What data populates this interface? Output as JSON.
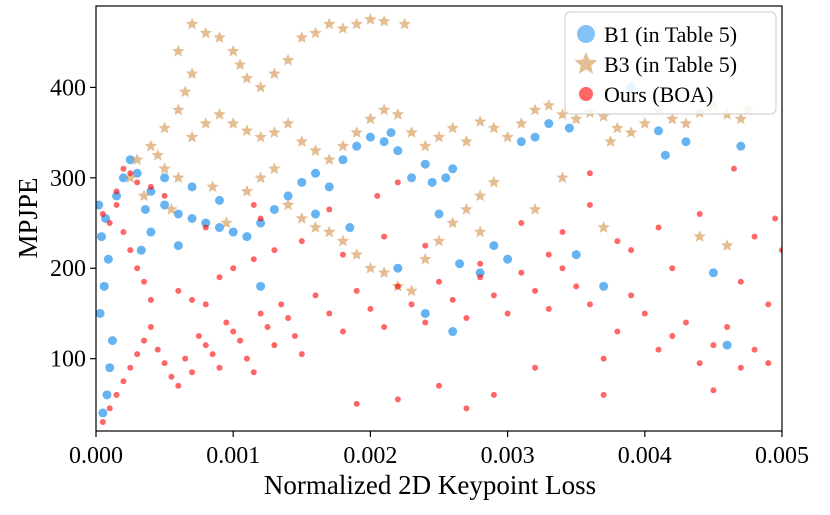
{
  "chart_data": {
    "type": "scatter",
    "title": "",
    "xlabel": "Normalized 2D Keypoint Loss",
    "ylabel": "MPJPE",
    "xlim": [
      0.0,
      0.005
    ],
    "ylim": [
      20,
      490
    ],
    "xticks": [
      0.0,
      0.001,
      0.002,
      0.003,
      0.004,
      0.005
    ],
    "xtick_labels": [
      "0.000",
      "0.001",
      "0.002",
      "0.003",
      "0.004",
      "0.005"
    ],
    "yticks": [
      100,
      200,
      300,
      400
    ],
    "ytick_labels": [
      "100",
      "200",
      "300",
      "400"
    ],
    "grid": false,
    "legend_position": "top-right",
    "series": [
      {
        "name": "B1 (in Table 5)",
        "marker": "circle",
        "color": "#3399ee",
        "points": [
          [
            5e-05,
            40
          ],
          [
            8e-05,
            60
          ],
          [
            0.0001,
            90
          ],
          [
            0.00012,
            120
          ],
          [
            3e-05,
            150
          ],
          [
            6e-05,
            180
          ],
          [
            9e-05,
            210
          ],
          [
            4e-05,
            235
          ],
          [
            7e-05,
            255
          ],
          [
            2e-05,
            270
          ],
          [
            0.00015,
            280
          ],
          [
            0.0002,
            300
          ],
          [
            0.00025,
            320
          ],
          [
            0.0003,
            305
          ],
          [
            0.0004,
            285
          ],
          [
            0.0005,
            270
          ],
          [
            0.0006,
            260
          ],
          [
            0.0007,
            255
          ],
          [
            0.0008,
            250
          ],
          [
            0.0009,
            245
          ],
          [
            0.001,
            240
          ],
          [
            0.0011,
            235
          ],
          [
            0.0012,
            250
          ],
          [
            0.0013,
            265
          ],
          [
            0.0014,
            280
          ],
          [
            0.0015,
            295
          ],
          [
            0.0016,
            305
          ],
          [
            0.0017,
            290
          ],
          [
            0.0018,
            320
          ],
          [
            0.0019,
            335
          ],
          [
            0.002,
            345
          ],
          [
            0.0021,
            340
          ],
          [
            0.00215,
            350
          ],
          [
            0.0022,
            330
          ],
          [
            0.0023,
            300
          ],
          [
            0.0024,
            315
          ],
          [
            0.00245,
            295
          ],
          [
            0.0025,
            260
          ],
          [
            0.00255,
            300
          ],
          [
            0.0026,
            310
          ],
          [
            0.00265,
            205
          ],
          [
            0.0028,
            195
          ],
          [
            0.0029,
            225
          ],
          [
            0.003,
            210
          ],
          [
            0.0031,
            340
          ],
          [
            0.0032,
            345
          ],
          [
            0.0033,
            360
          ],
          [
            0.00345,
            355
          ],
          [
            0.0035,
            215
          ],
          [
            0.0037,
            180
          ],
          [
            0.0039,
            400
          ],
          [
            0.0041,
            352
          ],
          [
            0.00415,
            325
          ],
          [
            0.0043,
            340
          ],
          [
            0.0045,
            195
          ],
          [
            0.0046,
            115
          ],
          [
            0.0047,
            335
          ],
          [
            0.0005,
            300
          ],
          [
            0.0007,
            290
          ],
          [
            0.00185,
            245
          ],
          [
            0.0022,
            200
          ],
          [
            0.0024,
            150
          ],
          [
            0.0026,
            130
          ],
          [
            0.0012,
            180
          ],
          [
            0.0016,
            260
          ],
          [
            0.0006,
            225
          ],
          [
            0.0004,
            240
          ],
          [
            0.00033,
            220
          ],
          [
            0.00036,
            265
          ],
          [
            0.0009,
            275
          ]
        ]
      },
      {
        "name": "B3 (in Table 5)",
        "marker": "star",
        "color": "#d2924a",
        "points": [
          [
            0.0007,
            470
          ],
          [
            0.0008,
            460
          ],
          [
            0.0009,
            455
          ],
          [
            0.001,
            440
          ],
          [
            0.00105,
            425
          ],
          [
            0.0011,
            410
          ],
          [
            0.0012,
            400
          ],
          [
            0.0013,
            415
          ],
          [
            0.0014,
            430
          ],
          [
            0.0015,
            455
          ],
          [
            0.0016,
            460
          ],
          [
            0.0017,
            470
          ],
          [
            0.0018,
            465
          ],
          [
            0.0019,
            470
          ],
          [
            0.002,
            475
          ],
          [
            0.0021,
            473
          ],
          [
            0.00225,
            470
          ],
          [
            0.0006,
            440
          ],
          [
            0.0007,
            415
          ],
          [
            0.00065,
            395
          ],
          [
            0.0006,
            375
          ],
          [
            0.0005,
            355
          ],
          [
            0.0004,
            335
          ],
          [
            0.00045,
            325
          ],
          [
            0.0005,
            310
          ],
          [
            0.0006,
            300
          ],
          [
            0.0007,
            345
          ],
          [
            0.0008,
            360
          ],
          [
            0.0009,
            370
          ],
          [
            0.001,
            360
          ],
          [
            0.0011,
            352
          ],
          [
            0.0012,
            345
          ],
          [
            0.0013,
            350
          ],
          [
            0.0014,
            360
          ],
          [
            0.0015,
            340
          ],
          [
            0.0016,
            330
          ],
          [
            0.0017,
            320
          ],
          [
            0.0018,
            335
          ],
          [
            0.0019,
            350
          ],
          [
            0.002,
            365
          ],
          [
            0.0021,
            375
          ],
          [
            0.0022,
            370
          ],
          [
            0.0023,
            350
          ],
          [
            0.0024,
            335
          ],
          [
            0.0025,
            345
          ],
          [
            0.0026,
            355
          ],
          [
            0.0027,
            340
          ],
          [
            0.0028,
            362
          ],
          [
            0.0029,
            355
          ],
          [
            0.003,
            345
          ],
          [
            0.0031,
            360
          ],
          [
            0.0032,
            375
          ],
          [
            0.0033,
            380
          ],
          [
            0.0034,
            370
          ],
          [
            0.0035,
            365
          ],
          [
            0.0036,
            372
          ],
          [
            0.0037,
            368
          ],
          [
            0.0038,
            355
          ],
          [
            0.0039,
            350
          ],
          [
            0.004,
            360
          ],
          [
            0.0041,
            375
          ],
          [
            0.0042,
            365
          ],
          [
            0.0043,
            360
          ],
          [
            0.0044,
            372
          ],
          [
            0.0045,
            380
          ],
          [
            0.0046,
            370
          ],
          [
            0.0047,
            365
          ],
          [
            0.00475,
            375
          ],
          [
            0.0014,
            270
          ],
          [
            0.0015,
            255
          ],
          [
            0.0016,
            245
          ],
          [
            0.0017,
            240
          ],
          [
            0.0018,
            230
          ],
          [
            0.0019,
            215
          ],
          [
            0.002,
            200
          ],
          [
            0.0021,
            195
          ],
          [
            0.0022,
            180
          ],
          [
            0.0023,
            175
          ],
          [
            0.0024,
            210
          ],
          [
            0.0025,
            230
          ],
          [
            0.0026,
            250
          ],
          [
            0.0027,
            265
          ],
          [
            0.0028,
            280
          ],
          [
            0.0029,
            295
          ],
          [
            0.0011,
            285
          ],
          [
            0.0012,
            300
          ],
          [
            0.0013,
            310
          ],
          [
            0.00085,
            290
          ],
          [
            0.00095,
            250
          ],
          [
            0.00055,
            265
          ],
          [
            0.0003,
            320
          ],
          [
            0.00025,
            300
          ],
          [
            0.00035,
            280
          ],
          [
            0.0037,
            245
          ],
          [
            0.0044,
            235
          ],
          [
            0.0046,
            225
          ],
          [
            0.00375,
            340
          ],
          [
            0.0032,
            265
          ],
          [
            0.0028,
            240
          ],
          [
            0.0034,
            300
          ]
        ]
      },
      {
        "name": "Ours (BOA)",
        "marker": "circle",
        "color": "#ff0000",
        "points": [
          [
            5e-05,
            30
          ],
          [
            0.0001,
            45
          ],
          [
            0.00015,
            60
          ],
          [
            0.0002,
            75
          ],
          [
            0.00025,
            90
          ],
          [
            0.0003,
            105
          ],
          [
            0.00035,
            120
          ],
          [
            0.0004,
            135
          ],
          [
            0.00045,
            110
          ],
          [
            0.0005,
            95
          ],
          [
            0.00055,
            80
          ],
          [
            0.0006,
            70
          ],
          [
            0.00065,
            100
          ],
          [
            0.0007,
            85
          ],
          [
            0.00075,
            125
          ],
          [
            0.0008,
            115
          ],
          [
            0.00085,
            105
          ],
          [
            0.0009,
            90
          ],
          [
            0.00095,
            140
          ],
          [
            0.001,
            130
          ],
          [
            0.00105,
            120
          ],
          [
            0.0011,
            100
          ],
          [
            0.00115,
            85
          ],
          [
            0.0012,
            150
          ],
          [
            0.00125,
            135
          ],
          [
            0.0013,
            115
          ],
          [
            0.00135,
            160
          ],
          [
            0.0014,
            145
          ],
          [
            0.00145,
            125
          ],
          [
            0.0015,
            105
          ],
          [
            0.0016,
            170
          ],
          [
            0.0017,
            150
          ],
          [
            0.0018,
            130
          ],
          [
            0.0019,
            175
          ],
          [
            0.002,
            155
          ],
          [
            0.0021,
            135
          ],
          [
            0.0022,
            180
          ],
          [
            0.0023,
            160
          ],
          [
            0.0024,
            140
          ],
          [
            0.0025,
            185
          ],
          [
            0.0026,
            165
          ],
          [
            0.0027,
            145
          ],
          [
            0.0028,
            190
          ],
          [
            0.0029,
            170
          ],
          [
            0.003,
            150
          ],
          [
            0.0031,
            195
          ],
          [
            0.0032,
            175
          ],
          [
            0.0033,
            155
          ],
          [
            0.0034,
            200
          ],
          [
            0.0035,
            180
          ],
          [
            0.0036,
            160
          ],
          [
            0.0037,
            100
          ],
          [
            0.0038,
            130
          ],
          [
            0.0039,
            170
          ],
          [
            0.004,
            150
          ],
          [
            0.0041,
            110
          ],
          [
            0.0042,
            125
          ],
          [
            0.0043,
            140
          ],
          [
            0.0044,
            95
          ],
          [
            0.0045,
            115
          ],
          [
            0.0046,
            135
          ],
          [
            0.0047,
            90
          ],
          [
            0.0048,
            110
          ],
          [
            0.0049,
            95
          ],
          [
            0.005,
            220
          ],
          [
            0.00495,
            255
          ],
          [
            0.0044,
            260
          ],
          [
            0.0041,
            245
          ],
          [
            0.0039,
            220
          ],
          [
            0.0036,
            270
          ],
          [
            0.0034,
            240
          ],
          [
            0.0031,
            250
          ],
          [
            0.0029,
            60
          ],
          [
            0.0027,
            45
          ],
          [
            0.0025,
            70
          ],
          [
            0.0037,
            60
          ],
          [
            0.0045,
            65
          ],
          [
            0.0032,
            90
          ],
          [
            0.0022,
            55
          ],
          [
            0.0019,
            50
          ],
          [
            5e-05,
            260
          ],
          [
            0.0001,
            250
          ],
          [
            0.00015,
            270
          ],
          [
            0.0002,
            240
          ],
          [
            0.00025,
            220
          ],
          [
            0.0003,
            200
          ],
          [
            0.00035,
            185
          ],
          [
            0.0004,
            165
          ],
          [
            0.0002,
            310
          ],
          [
            0.00025,
            305
          ],
          [
            0.0003,
            295
          ],
          [
            0.0006,
            175
          ],
          [
            0.0007,
            165
          ],
          [
            0.0008,
            160
          ],
          [
            0.0009,
            190
          ],
          [
            0.001,
            200
          ],
          [
            0.00115,
            210
          ],
          [
            0.0013,
            220
          ],
          [
            0.0015,
            230
          ],
          [
            0.0018,
            215
          ],
          [
            0.0021,
            235
          ],
          [
            0.0024,
            225
          ],
          [
            0.0028,
            205
          ],
          [
            0.0033,
            215
          ],
          [
            0.0038,
            230
          ],
          [
            0.0042,
            200
          ],
          [
            0.0047,
            185
          ],
          [
            0.0049,
            160
          ],
          [
            0.00205,
            280
          ],
          [
            0.0017,
            265
          ],
          [
            0.0012,
            255
          ],
          [
            0.0008,
            245
          ],
          [
            0.00115,
            270
          ],
          [
            0.0005,
            280
          ],
          [
            0.0004,
            290
          ],
          [
            0.00015,
            285
          ],
          [
            0.0022,
            295
          ],
          [
            0.0036,
            305
          ],
          [
            0.00465,
            310
          ],
          [
            0.0048,
            235
          ]
        ]
      }
    ]
  }
}
